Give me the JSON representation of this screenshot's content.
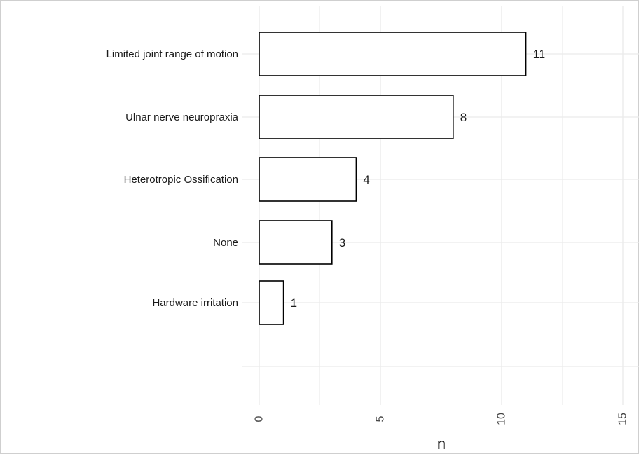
{
  "chart_data": {
    "type": "bar",
    "orientation": "horizontal",
    "categories": [
      "Limited joint range of motion",
      "Ulnar nerve neuropraxia",
      "Heterotropic Ossification",
      "None",
      "Hardware irritation"
    ],
    "values": [
      11,
      8,
      4,
      3,
      1
    ],
    "data_labels": [
      "11",
      "8",
      "4",
      "3",
      "1"
    ],
    "xlabel": "n",
    "ylabel": "",
    "xlim": [
      0,
      15.5
    ],
    "x_ticks": [
      0,
      5,
      10,
      15
    ],
    "x_tick_labels": [
      "0",
      "5",
      "10",
      "15"
    ],
    "tick_label_rotation": "vertical",
    "grid": true,
    "bar_fill": "#ffffff",
    "bar_stroke": "#000000",
    "grid_color": "#ebebeb"
  }
}
